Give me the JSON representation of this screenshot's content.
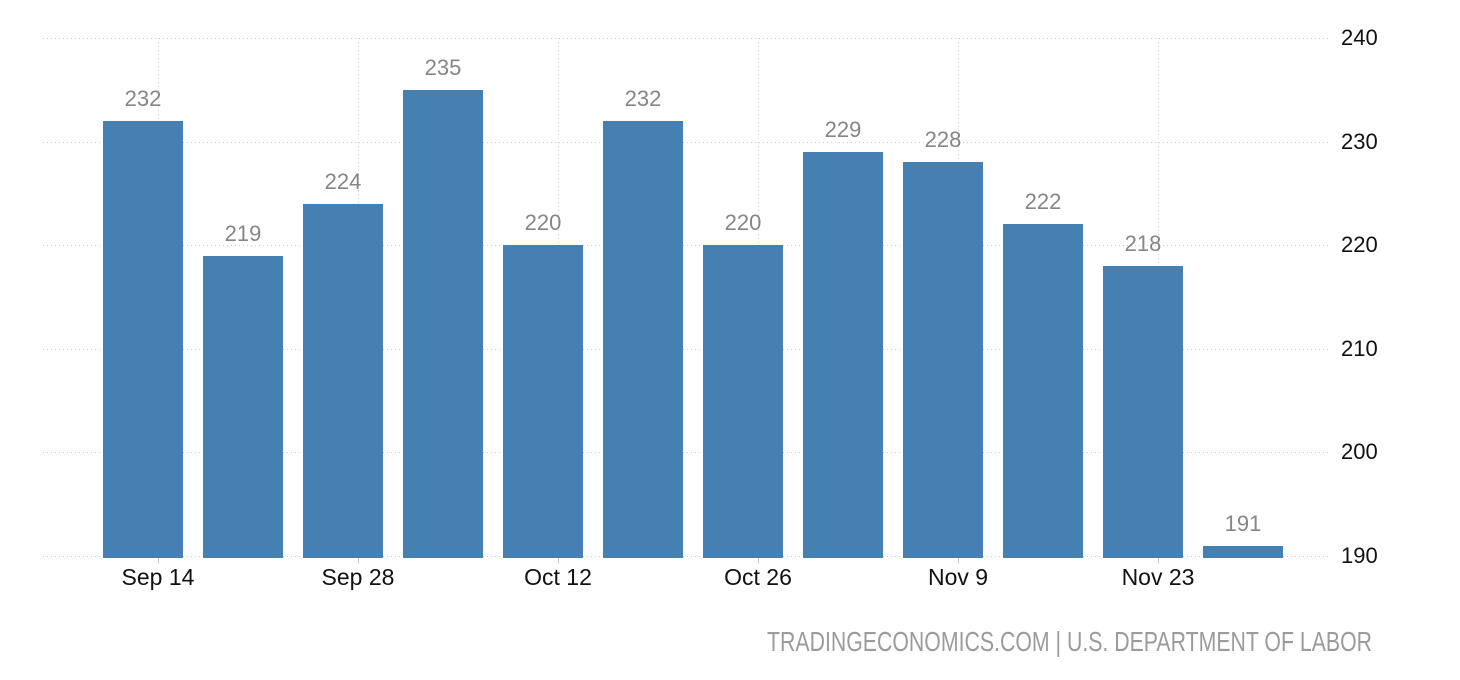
{
  "attribution": "TRADINGECONOMICS.COM | U.S. DEPARTMENT OF LABOR",
  "colors": {
    "bar": "#4680b3",
    "grid": "#cccccc",
    "tick": "#c6c6c6",
    "axis_text": "#111111",
    "value_label": "#868686",
    "attribution_text": "#9b9b9b",
    "background": "#ffffff"
  },
  "chart_data": {
    "type": "bar",
    "title": "",
    "xlabel": "",
    "ylabel": "",
    "values": [
      232,
      219,
      224,
      235,
      220,
      232,
      220,
      229,
      228,
      222,
      218,
      191
    ],
    "data_labels_shown": true,
    "x_tick_labels": [
      "Sep 14",
      "Sep 28",
      "Oct 12",
      "Oct 26",
      "Nov 9",
      "Nov 23"
    ],
    "x_ticks_every_n_bars": 2,
    "y_tick_labels": [
      240,
      230,
      220,
      210,
      200,
      190
    ],
    "ylim": [
      190,
      240
    ],
    "y_axis_side": "right",
    "grid": true,
    "grid_style": "dotted",
    "legend": false
  }
}
